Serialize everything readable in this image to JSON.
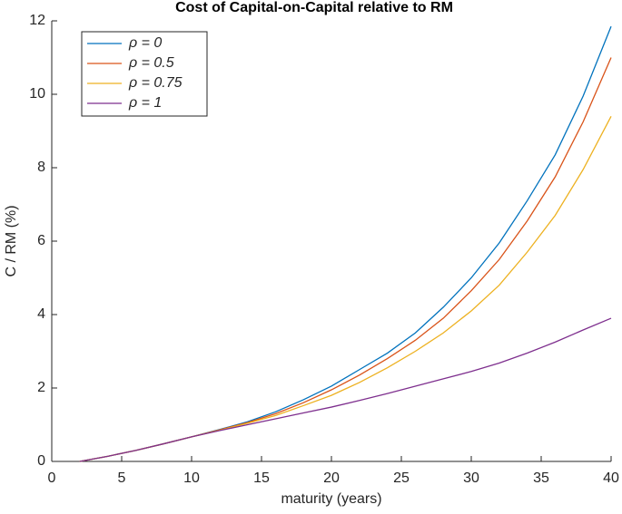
{
  "chart_data": {
    "type": "line",
    "title": "Cost of Capital-on-Capital relative to RM",
    "x_label": "maturity (years)",
    "y_label": "C / RM (%)",
    "x": [
      2,
      4,
      6,
      8,
      10,
      12,
      14,
      16,
      18,
      20,
      22,
      24,
      26,
      28,
      30,
      32,
      34,
      36,
      38,
      40
    ],
    "series": [
      {
        "name": "ρ = 0",
        "color": "#0072bd",
        "values": [
          0,
          0.14,
          0.3,
          0.48,
          0.67,
          0.87,
          1.08,
          1.35,
          1.68,
          2.05,
          2.5,
          2.95,
          3.5,
          4.2,
          5.0,
          5.95,
          7.1,
          8.35,
          9.95,
          11.85
        ]
      },
      {
        "name": "ρ = 0.5",
        "color": "#d95319",
        "values": [
          0,
          0.14,
          0.3,
          0.48,
          0.67,
          0.86,
          1.06,
          1.3,
          1.6,
          1.95,
          2.35,
          2.8,
          3.3,
          3.9,
          4.65,
          5.5,
          6.55,
          7.75,
          9.25,
          11.0
        ]
      },
      {
        "name": "ρ = 0.75",
        "color": "#edb120",
        "values": [
          0,
          0.14,
          0.3,
          0.48,
          0.67,
          0.85,
          1.04,
          1.25,
          1.52,
          1.8,
          2.15,
          2.55,
          3.0,
          3.5,
          4.1,
          4.8,
          5.7,
          6.7,
          7.95,
          9.4
        ]
      },
      {
        "name": "ρ = 1",
        "color": "#7e2f8e",
        "values": [
          0,
          0.14,
          0.3,
          0.48,
          0.67,
          0.84,
          1.0,
          1.16,
          1.32,
          1.48,
          1.66,
          1.85,
          2.05,
          2.25,
          2.45,
          2.68,
          2.95,
          3.25,
          3.58,
          3.9
        ]
      }
    ],
    "xlim": [
      0,
      40
    ],
    "xticks": [
      0,
      5,
      10,
      15,
      20,
      25,
      30,
      35,
      40
    ],
    "ylim": [
      0,
      12
    ],
    "yticks": [
      0,
      2,
      4,
      6,
      8,
      10,
      12
    ],
    "legend": "upper-left"
  }
}
